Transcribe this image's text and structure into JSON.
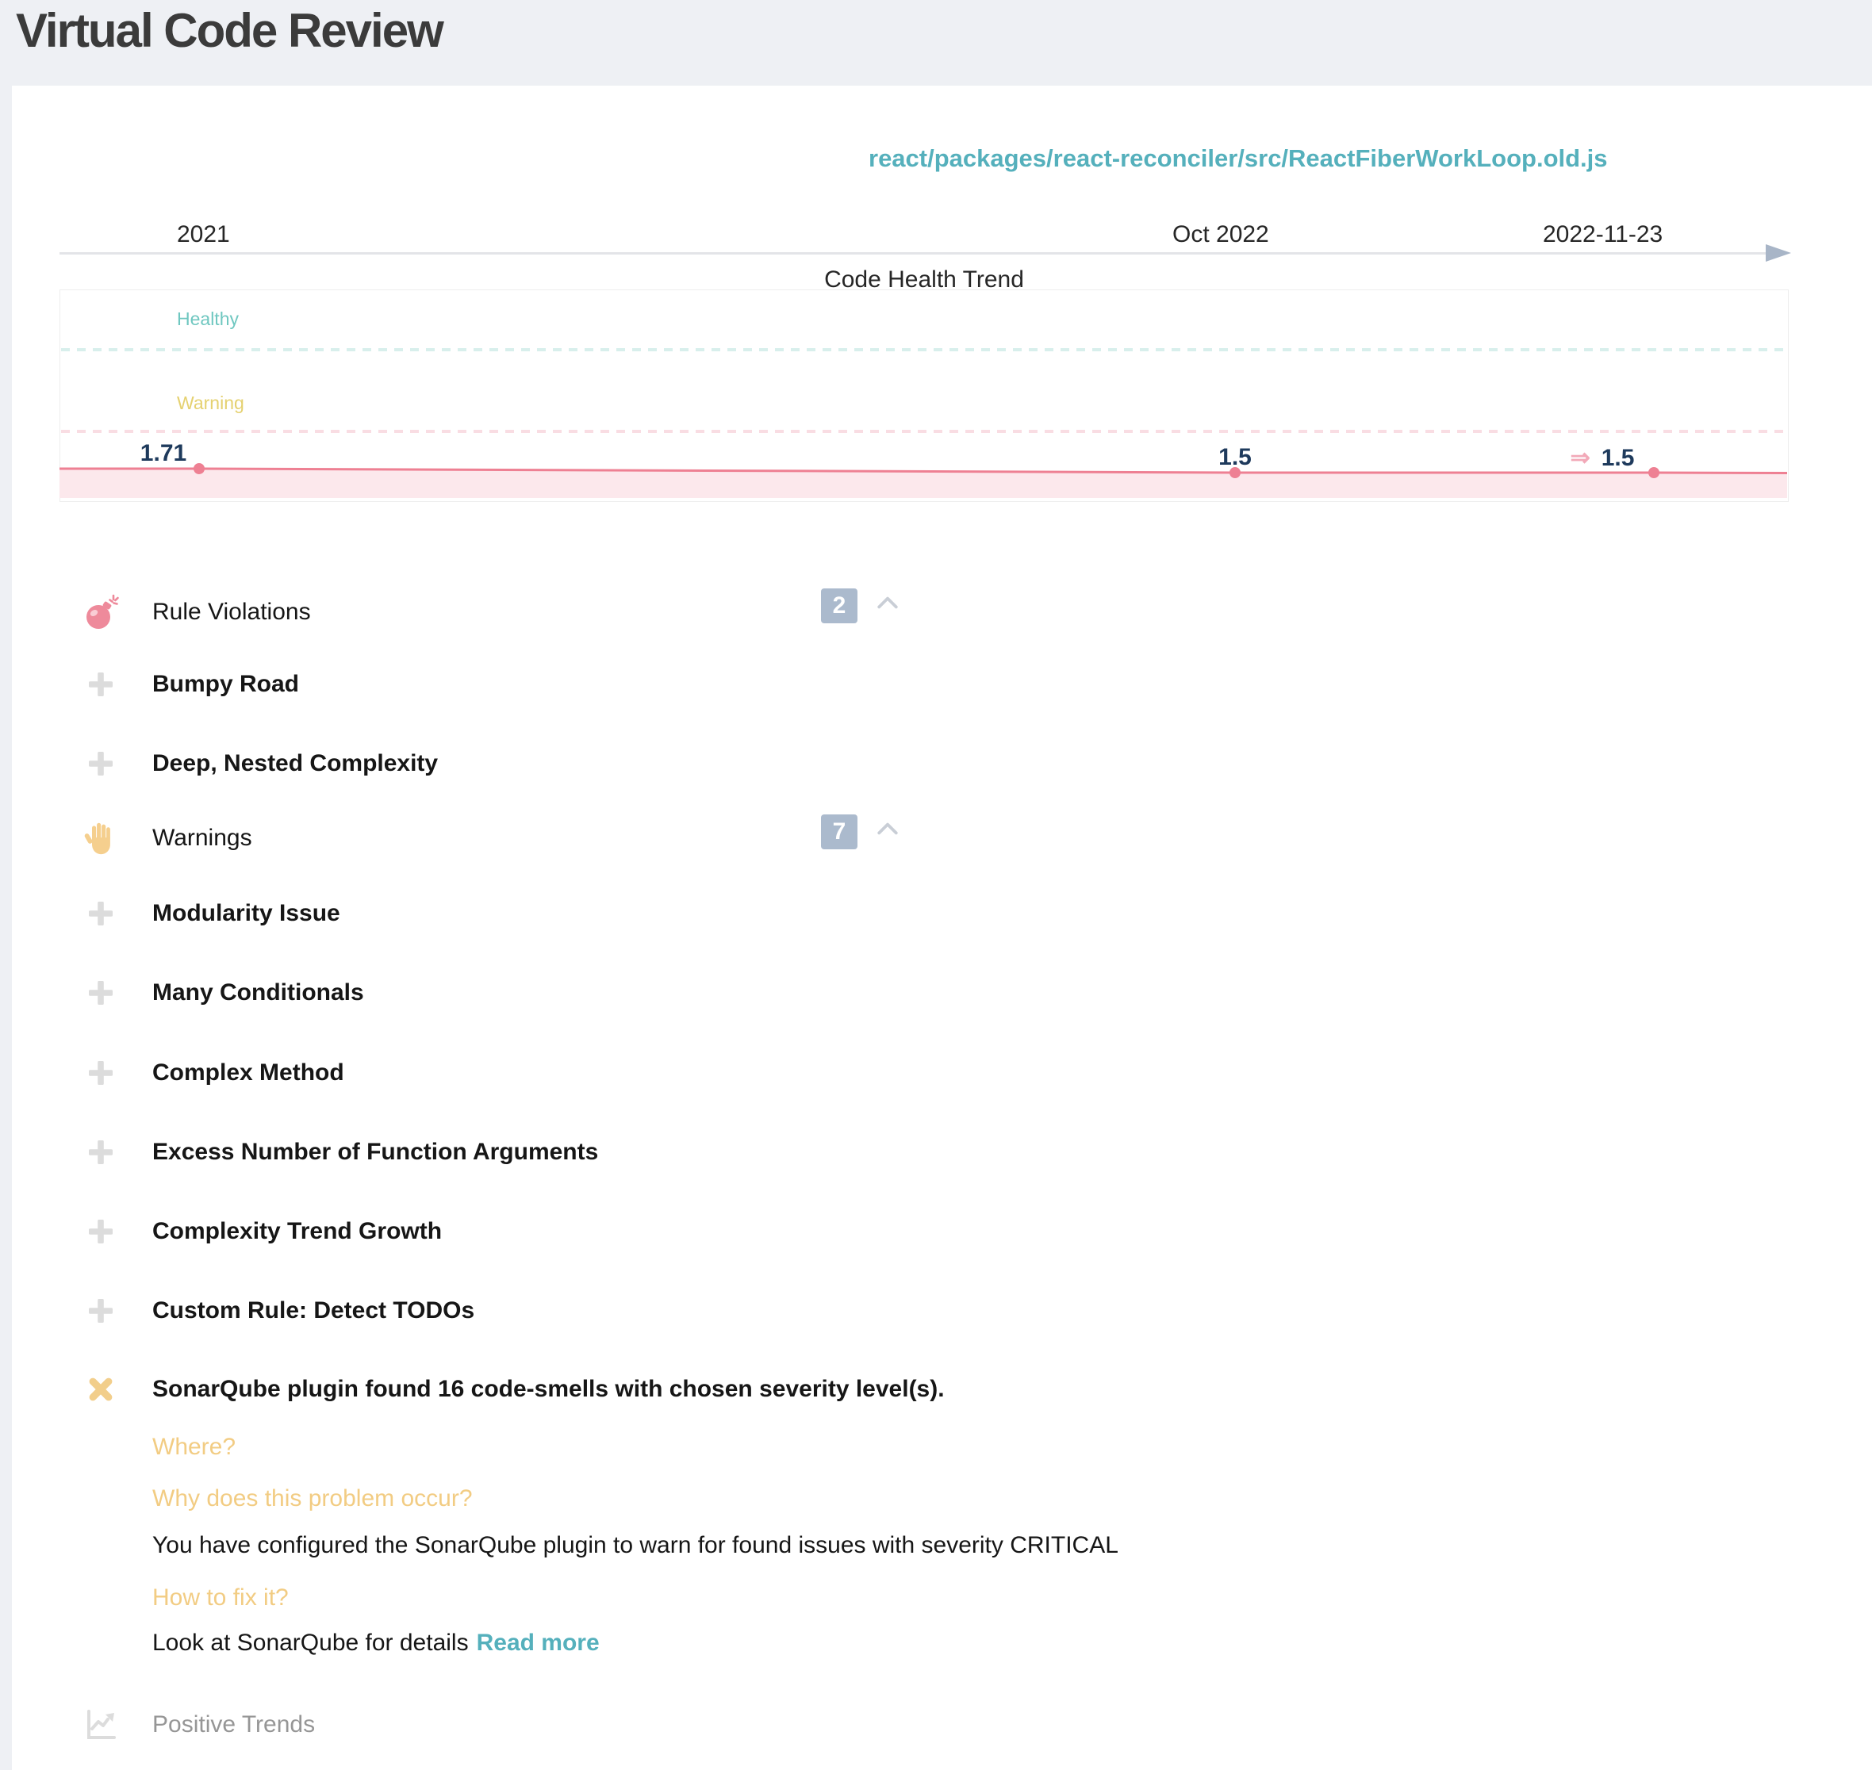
{
  "page": {
    "title": "Virtual Code Review"
  },
  "file": {
    "path": "react/packages/react-reconciler/src/ReactFiberWorkLoop.old.js"
  },
  "timeline": {
    "labels": [
      "2021",
      "Oct 2022",
      "2022-11-23"
    ]
  },
  "chart_data": {
    "type": "line",
    "title": "Code Health Trend",
    "x_axis_labels": [
      "2021",
      "Oct 2022",
      "2022-11-23"
    ],
    "series": [
      {
        "name": "Code Health",
        "points": [
          {
            "x": "2021",
            "value": 1.71,
            "label": "1.71",
            "px": 251
          },
          {
            "x": "Oct 2022",
            "value": 1.5,
            "label": "1.5",
            "px": 1557
          },
          {
            "x": "2022-11-23",
            "value": 1.5,
            "label": "1.5",
            "px": 2085
          }
        ]
      }
    ],
    "zones": {
      "healthy_label": "Healthy",
      "warning_label": "Warning"
    },
    "trend_arrow": "⇒",
    "layout": {
      "grid": "two dashed threshold lines",
      "problem_zone": "red shaded band at bottom",
      "legend": "none"
    }
  },
  "issues": [
    {
      "icon": "bomb-icon",
      "label": "Rule Violations",
      "bold": false,
      "badge": "2",
      "chevron": true
    },
    {
      "icon": "plus-icon",
      "label": "Bumpy Road",
      "bold": true
    },
    {
      "icon": "plus-icon",
      "label": "Deep, Nested Complexity",
      "bold": true
    },
    {
      "icon": "hand-icon",
      "label": "Warnings",
      "bold": false,
      "badge": "7",
      "chevron": true
    },
    {
      "icon": "plus-icon",
      "label": "Modularity Issue",
      "bold": true
    },
    {
      "icon": "plus-icon",
      "label": "Many Conditionals",
      "bold": true
    },
    {
      "icon": "plus-icon",
      "label": "Complex Method",
      "bold": true
    },
    {
      "icon": "plus-icon",
      "label": "Excess Number of Function Arguments",
      "bold": true
    },
    {
      "icon": "plus-icon",
      "label": "Complexity Trend Growth",
      "bold": true
    },
    {
      "icon": "plus-icon",
      "label": "Custom Rule: Detect TODOs",
      "bold": true
    },
    {
      "icon": "x-icon",
      "label": "SonarQube plugin found 16 code-smells with chosen severity level(s).",
      "bold": true
    }
  ],
  "detail": {
    "where_label": "Where?",
    "why_label": "Why does this problem occur?",
    "why_text": "You have configured the SonarQube plugin to warn for found issues with severity CRITICAL",
    "fix_label": "How to fix it?",
    "fix_text": "Look at SonarQube for details",
    "read_more_label": "Read more"
  },
  "footer": {
    "positive_trends_label": "Positive Trends"
  },
  "colors": {
    "background": "#eef0f4",
    "panel": "#ffffff",
    "accent_teal": "#55b0bc",
    "healthy_teal": "#6fc7c0",
    "warning_yellow": "#e5d170",
    "gold": "#f2cc83",
    "trend_pink": "#ee8093",
    "zone_fill_pink": "#fce8ec",
    "value_navy": "#1e3a5c",
    "badge_bg": "#abbacd",
    "icon_gray": "#dcdcdc",
    "muted_text": "#969696"
  }
}
